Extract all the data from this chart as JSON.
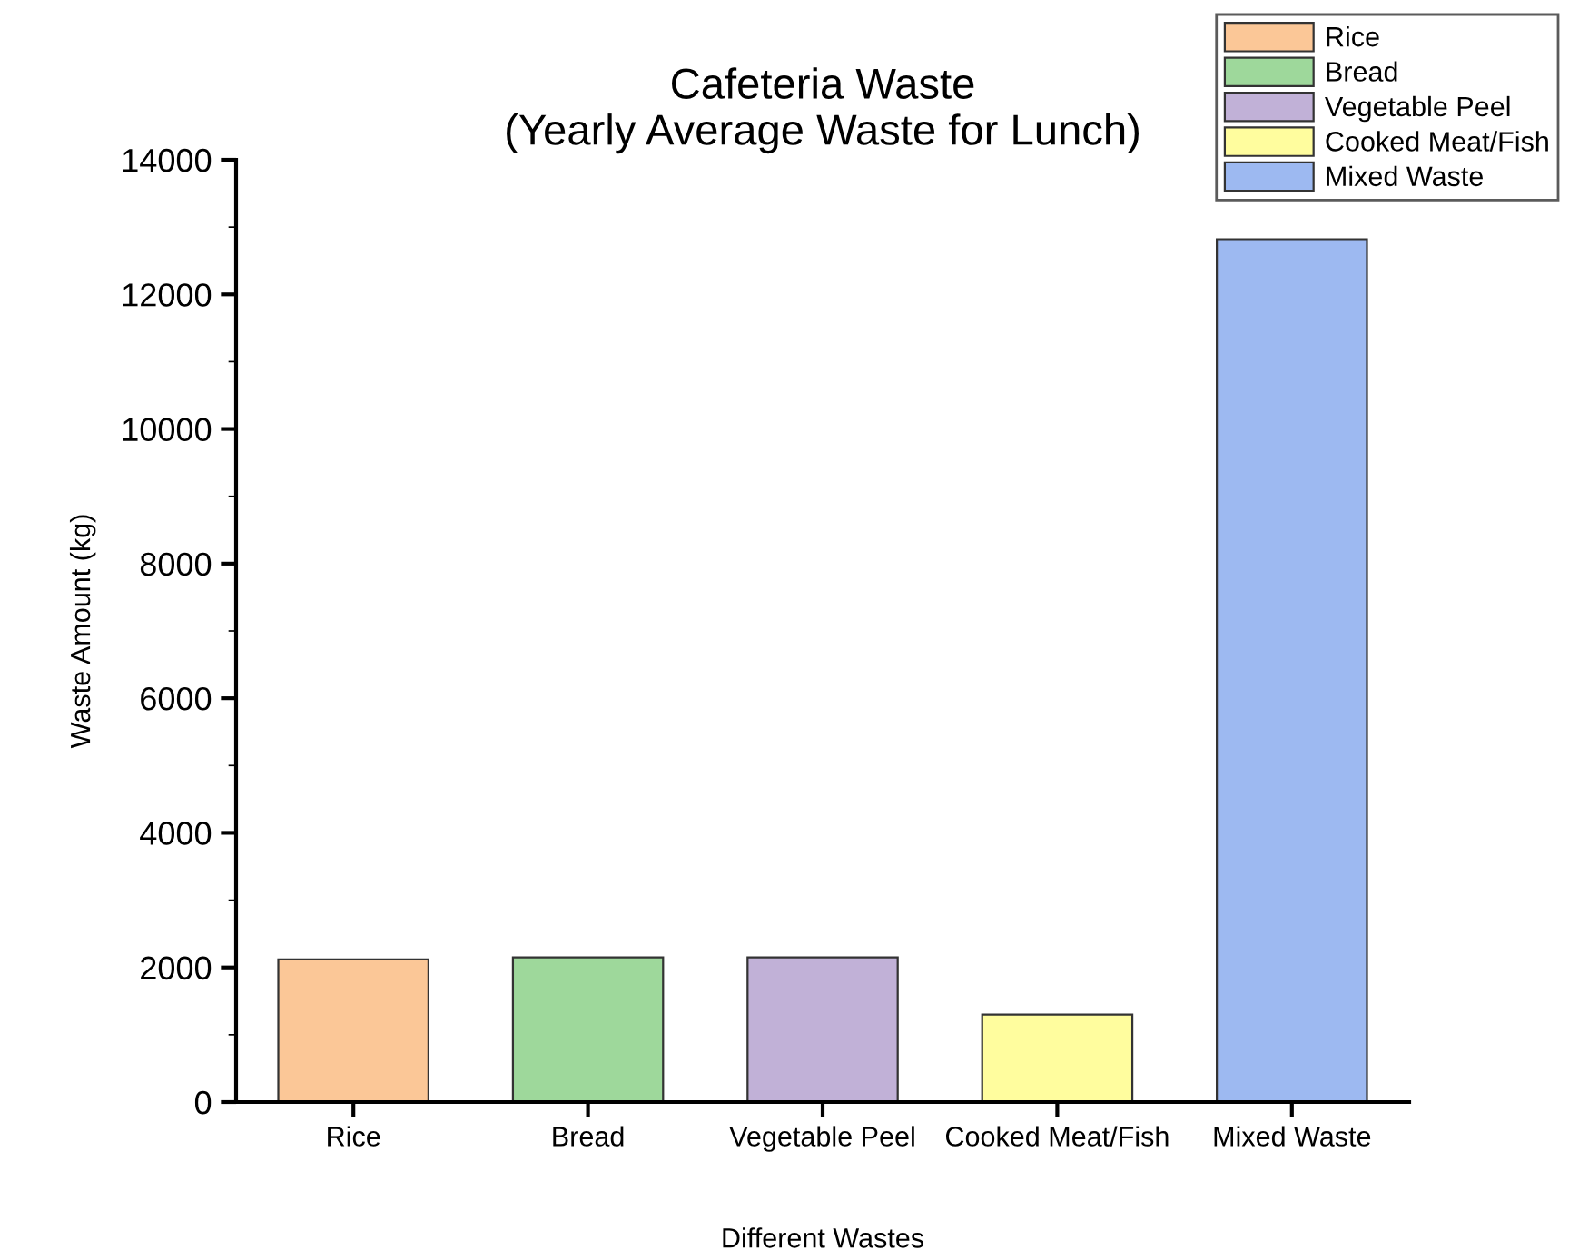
{
  "chart_data": {
    "type": "bar",
    "title": "Cafeteria Waste\n(Yearly Average Waste for Lunch)",
    "xlabel": "Different Wastes",
    "ylabel": "Waste Amount (kg)",
    "categories": [
      "Rice",
      "Bread",
      "Vegetable Peel",
      "Cooked Meat/Fish",
      "Mixed Waste"
    ],
    "series": [
      {
        "name": "Rice",
        "color": "#fbc797",
        "values": [
          2120,
          null,
          null,
          null,
          null
        ]
      },
      {
        "name": "Bread",
        "color": "#9ed89b",
        "values": [
          null,
          2150,
          null,
          null,
          null
        ]
      },
      {
        "name": "Vegetable Peel",
        "color": "#c1b1d7",
        "values": [
          null,
          null,
          2150,
          null,
          null
        ]
      },
      {
        "name": "Cooked Meat/Fish",
        "color": "#fffd9e",
        "values": [
          null,
          null,
          null,
          1300,
          null
        ]
      },
      {
        "name": "Mixed Waste",
        "color": "#9db9f1",
        "values": [
          null,
          null,
          null,
          null,
          12820
        ]
      }
    ],
    "ylim": [
      0,
      14000
    ],
    "yticks": [
      0,
      2000,
      4000,
      6000,
      8000,
      10000,
      12000,
      14000
    ],
    "grid": false,
    "legend": "top right"
  }
}
